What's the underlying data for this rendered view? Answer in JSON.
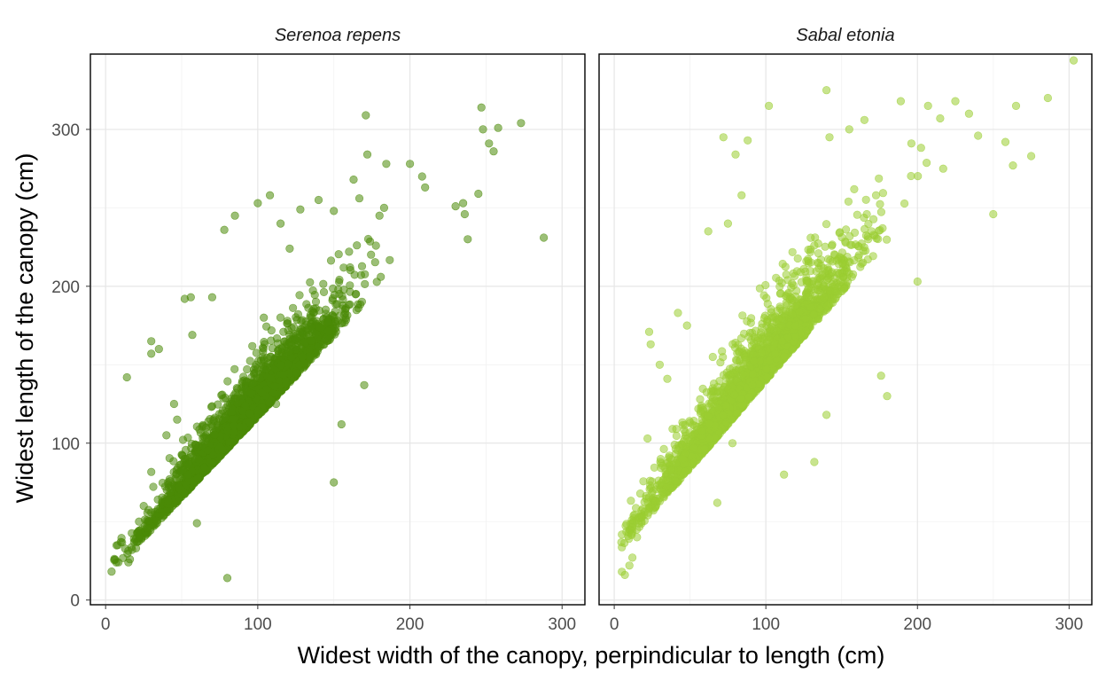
{
  "chart_data": {
    "type": "scatter",
    "xlabel": "Widest width of the canopy, perpindicular to length (cm)",
    "ylabel": "Widest length of the canopy (cm)",
    "xlim": [
      -10,
      315
    ],
    "ylim": [
      -3,
      348
    ],
    "x_ticks": [
      0,
      100,
      200,
      300
    ],
    "y_ticks": [
      0,
      100,
      200,
      300
    ],
    "grid": true,
    "facets": [
      {
        "name": "Serenoa repens",
        "color": "#4b8a08",
        "note_points": "representative sample plus dense cloud generated along trend",
        "points": [
          [
            8,
            35
          ],
          [
            10,
            37
          ],
          [
            14,
            142
          ],
          [
            15,
            24
          ],
          [
            16,
            26
          ],
          [
            20,
            33
          ],
          [
            21,
            43
          ],
          [
            22,
            50
          ],
          [
            30,
            157
          ],
          [
            30,
            165
          ],
          [
            35,
            160
          ],
          [
            40,
            105
          ],
          [
            45,
            125
          ],
          [
            47,
            115
          ],
          [
            52,
            192
          ],
          [
            56,
            193
          ],
          [
            57,
            169
          ],
          [
            60,
            49
          ],
          [
            70,
            193
          ],
          [
            78,
            236
          ],
          [
            80,
            14
          ],
          [
            85,
            245
          ],
          [
            100,
            253
          ],
          [
            104,
            180
          ],
          [
            108,
            258
          ],
          [
            112,
            125
          ],
          [
            115,
            240
          ],
          [
            121,
            224
          ],
          [
            128,
            249
          ],
          [
            140,
            255
          ],
          [
            150,
            75
          ],
          [
            150,
            248
          ],
          [
            155,
            112
          ],
          [
            160,
            222
          ],
          [
            163,
            268
          ],
          [
            170,
            137
          ],
          [
            171,
            309
          ],
          [
            172,
            284
          ],
          [
            180,
            245
          ],
          [
            183,
            250
          ],
          [
            200,
            278
          ],
          [
            208,
            270
          ],
          [
            210,
            263
          ],
          [
            230,
            251
          ],
          [
            235,
            253
          ],
          [
            236,
            246
          ],
          [
            238,
            230
          ],
          [
            245,
            259
          ],
          [
            247,
            314
          ],
          [
            248,
            300
          ],
          [
            252,
            291
          ],
          [
            255,
            286
          ],
          [
            258,
            301
          ],
          [
            273,
            304
          ],
          [
            288,
            231
          ]
        ]
      },
      {
        "name": "Sabal etonia",
        "color": "#9acd32",
        "note_points": "representative sample plus dense cloud generated along trend",
        "points": [
          [
            5,
            18
          ],
          [
            7,
            16
          ],
          [
            10,
            22
          ],
          [
            12,
            27
          ],
          [
            15,
            40
          ],
          [
            18,
            50
          ],
          [
            22,
            103
          ],
          [
            23,
            171
          ],
          [
            24,
            163
          ],
          [
            30,
            150
          ],
          [
            35,
            141
          ],
          [
            42,
            183
          ],
          [
            45,
            90
          ],
          [
            48,
            175
          ],
          [
            50,
            113
          ],
          [
            62,
            235
          ],
          [
            65,
            155
          ],
          [
            68,
            62
          ],
          [
            72,
            295
          ],
          [
            75,
            240
          ],
          [
            78,
            100
          ],
          [
            80,
            284
          ],
          [
            84,
            258
          ],
          [
            88,
            293
          ],
          [
            102,
            315
          ],
          [
            112,
            80
          ],
          [
            127,
            202
          ],
          [
            132,
            88
          ],
          [
            140,
            118
          ],
          [
            140,
            325
          ],
          [
            142,
            295
          ],
          [
            155,
            300
          ],
          [
            165,
            306
          ],
          [
            176,
            143
          ],
          [
            180,
            130
          ],
          [
            189,
            318
          ],
          [
            196,
            291
          ],
          [
            200,
            203
          ],
          [
            207,
            315
          ],
          [
            215,
            307
          ],
          [
            217,
            275
          ],
          [
            225,
            318
          ],
          [
            234,
            310
          ],
          [
            240,
            296
          ],
          [
            250,
            246
          ],
          [
            258,
            292
          ],
          [
            263,
            277
          ],
          [
            265,
            315
          ],
          [
            275,
            283
          ],
          [
            286,
            320
          ],
          [
            303,
            344
          ]
        ]
      }
    ]
  }
}
